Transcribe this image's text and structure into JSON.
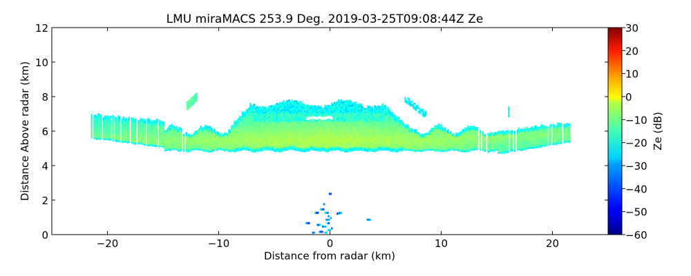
{
  "chart_data": {
    "type": "heatmap",
    "title": "LMU miraMACS 253.9 Deg. 2019-03-25T09:08:44Z  Ze",
    "xlabel": "Distance from radar (km)",
    "ylabel": "Distance Above radar  (km)",
    "xlim": [
      -25,
      25
    ],
    "ylim": [
      0,
      12
    ],
    "xticks": [
      -20,
      -10,
      0,
      10,
      20
    ],
    "xtick_labels": [
      "−20",
      "−10",
      "0",
      "10",
      "20"
    ],
    "yticks": [
      0,
      2,
      4,
      6,
      8,
      10,
      12
    ],
    "ytick_labels": [
      "0",
      "2",
      "4",
      "6",
      "8",
      "10",
      "12"
    ],
    "grid": false,
    "colorbar": {
      "label": "Ze (dB)",
      "colormap": "jet",
      "range": [
        -60,
        30
      ],
      "ticks": [
        30,
        20,
        10,
        0,
        -10,
        -20,
        -30,
        -40,
        -50,
        -60
      ],
      "tick_labels": [
        "30",
        "20",
        "10",
        "0",
        "−10",
        "−20",
        "−30",
        "−40",
        "−50",
        "−60"
      ],
      "placement": "right"
    },
    "features": [
      {
        "name": "main-cloud-layer",
        "x_range_km": [
          -21.5,
          21.5
        ],
        "base_km": 4.8,
        "top_km": 7.9,
        "core_height_km": 5.4,
        "core_ze_db": -10,
        "edge_ze_db": -28
      },
      {
        "name": "left-tilted-scan-edge",
        "x_range_km": [
          -21.3,
          -15
        ],
        "height_range_km": [
          4.8,
          7.0
        ],
        "ze_db": -18
      },
      {
        "name": "right-tilted-scan-edge",
        "x_range_km": [
          14,
          21.5
        ],
        "height_range_km": [
          4.6,
          6.5
        ],
        "ze_db": -14
      },
      {
        "name": "upper-cloud-dome",
        "x_range_km": [
          -7,
          5
        ],
        "height_range_km": [
          6.5,
          7.9
        ],
        "ze_db": -24
      },
      {
        "name": "small-cloud-fragment-left",
        "x_range_km": [
          -12.9,
          -12.0
        ],
        "height_range_km": [
          7.2,
          8.0
        ],
        "ze_db": -18
      },
      {
        "name": "small-cloud-fragment-right",
        "x_range_km": [
          6.7,
          8.5
        ],
        "height_range_km": [
          7.0,
          8.0
        ],
        "ze_db": -27
      },
      {
        "name": "near-ground-clutter",
        "x_range_km": [
          -2.2,
          3.3
        ],
        "height_range_km": [
          0,
          2.5
        ],
        "ze_db": -40
      }
    ]
  }
}
